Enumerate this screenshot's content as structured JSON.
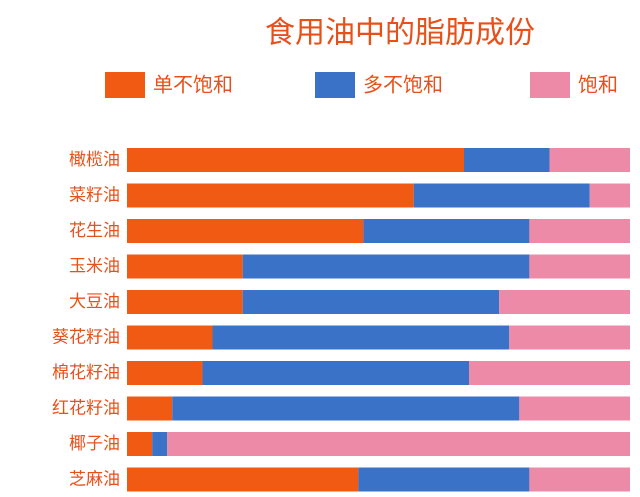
{
  "chart_data": {
    "type": "stacked-bar-horizontal",
    "title": "食用油中的脂肪成份",
    "categories": [
      "橄榄油",
      "菜籽油",
      "花生油",
      "玉米油",
      "大豆油",
      "葵花籽油",
      "棉花籽油",
      "红花籽油",
      "椰子油",
      "芝麻油"
    ],
    "series": [
      {
        "name": "单不饱和",
        "color": "#f05a12",
        "values": [
          67,
          57,
          47,
          23,
          23,
          17,
          15,
          9,
          5,
          46
        ]
      },
      {
        "name": "多不饱和",
        "color": "#3a72c8",
        "values": [
          17,
          35,
          33,
          57,
          51,
          59,
          53,
          69,
          3,
          34
        ]
      },
      {
        "name": "饱和",
        "color": "#ec8aa8",
        "values": [
          16,
          8,
          20,
          20,
          26,
          24,
          32,
          22,
          92,
          20
        ]
      }
    ],
    "xlim": [
      0,
      100
    ]
  }
}
